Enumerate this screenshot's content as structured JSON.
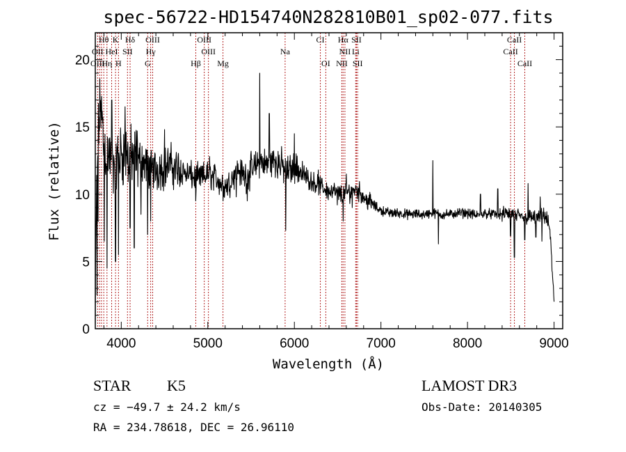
{
  "chart_data": {
    "type": "line",
    "title": "spec-56722-HD154740N282810B01_sp02-077.fits",
    "xlabel": "Wavelength (Å)",
    "ylabel": "Flux (relative)",
    "xlim": [
      3700,
      9100
    ],
    "ylim": [
      0,
      22
    ],
    "xticks": [
      4000,
      5000,
      6000,
      7000,
      8000,
      9000
    ],
    "yticks": [
      0,
      5,
      10,
      15,
      20
    ],
    "series": [
      {
        "name": "flux",
        "anchors": [
          [
            3700,
            0.5
          ],
          [
            3710,
            8
          ],
          [
            3730,
            14
          ],
          [
            3760,
            17
          ],
          [
            3800,
            13.5
          ],
          [
            3850,
            13
          ],
          [
            3900,
            12
          ],
          [
            3950,
            12.5
          ],
          [
            4000,
            13
          ],
          [
            4050,
            13
          ],
          [
            4100,
            12.5
          ],
          [
            4150,
            13
          ],
          [
            4200,
            12.5
          ],
          [
            4250,
            12.5
          ],
          [
            4300,
            12
          ],
          [
            4350,
            12
          ],
          [
            4400,
            11.8
          ],
          [
            4450,
            12
          ],
          [
            4500,
            12
          ],
          [
            4550,
            12.2
          ],
          [
            4600,
            12
          ],
          [
            4650,
            11.8
          ],
          [
            4700,
            11.8
          ],
          [
            4750,
            11.5
          ],
          [
            4800,
            11.4
          ],
          [
            4850,
            11.2
          ],
          [
            4900,
            11.2
          ],
          [
            4950,
            11.3
          ],
          [
            5000,
            11.5
          ],
          [
            5050,
            11.3
          ],
          [
            5100,
            11.2
          ],
          [
            5150,
            10.8
          ],
          [
            5200,
            10.6
          ],
          [
            5250,
            10.8
          ],
          [
            5300,
            11.5
          ],
          [
            5350,
            11.8
          ],
          [
            5400,
            11.5
          ],
          [
            5450,
            11.3
          ],
          [
            5500,
            11.8
          ],
          [
            5550,
            12.0
          ],
          [
            5600,
            12.5
          ],
          [
            5650,
            12.2
          ],
          [
            5700,
            12.3
          ],
          [
            5750,
            12.5
          ],
          [
            5800,
            12.4
          ],
          [
            5850,
            12.2
          ],
          [
            5900,
            11.6
          ],
          [
            5950,
            11.8
          ],
          [
            6000,
            12.0
          ],
          [
            6050,
            11.8
          ],
          [
            6100,
            11.5
          ],
          [
            6150,
            11.2
          ],
          [
            6200,
            11.0
          ],
          [
            6250,
            10.8
          ],
          [
            6300,
            10.6
          ],
          [
            6350,
            10.4
          ],
          [
            6400,
            10.2
          ],
          [
            6450,
            10.2
          ],
          [
            6500,
            10.1
          ],
          [
            6550,
            10.0
          ],
          [
            6600,
            10.1
          ],
          [
            6650,
            10.2
          ],
          [
            6700,
            10.4
          ],
          [
            6750,
            10.2
          ],
          [
            6800,
            9.8
          ],
          [
            6850,
            9.5
          ],
          [
            6900,
            9.3
          ],
          [
            6950,
            9.0
          ],
          [
            7000,
            8.8
          ],
          [
            7100,
            8.6
          ],
          [
            7200,
            8.6
          ],
          [
            7300,
            8.5
          ],
          [
            7400,
            8.5
          ],
          [
            7500,
            8.5
          ],
          [
            7600,
            8.6
          ],
          [
            7700,
            8.5
          ],
          [
            7800,
            8.5
          ],
          [
            7900,
            8.6
          ],
          [
            8000,
            8.6
          ],
          [
            8100,
            8.4
          ],
          [
            8200,
            8.6
          ],
          [
            8300,
            8.5
          ],
          [
            8400,
            8.5
          ],
          [
            8500,
            8.6
          ],
          [
            8600,
            8.3
          ],
          [
            8700,
            8.3
          ],
          [
            8800,
            8.2
          ],
          [
            8900,
            8.4
          ],
          [
            8950,
            7.5
          ],
          [
            9000,
            2.0
          ]
        ],
        "features": [
          [
            3720,
            2.5
          ],
          [
            3733,
            8.0
          ],
          [
            3768,
            16.5
          ],
          [
            3805,
            6.5
          ],
          [
            3835,
            4.5
          ],
          [
            3890,
            17.0
          ],
          [
            3934,
            5.0
          ],
          [
            3968,
            5.5
          ],
          [
            4045,
            16.5
          ],
          [
            4102,
            7.5
          ],
          [
            4150,
            6.0
          ],
          [
            4227,
            8.5
          ],
          [
            4305,
            7.0
          ],
          [
            4340,
            8.0
          ],
          [
            4500,
            14.8
          ],
          [
            4861,
            9.5
          ],
          [
            5020,
            12.8
          ],
          [
            5175,
            9.5
          ],
          [
            5270,
            10.5
          ],
          [
            5328,
            9.8
          ],
          [
            5455,
            9.5
          ],
          [
            5600,
            19.0
          ],
          [
            5710,
            16.0
          ],
          [
            5900,
            7.3
          ],
          [
            6000,
            14.5
          ],
          [
            6275,
            11.8
          ],
          [
            6495,
            9.2
          ],
          [
            6563,
            8.0
          ],
          [
            6600,
            11.5
          ],
          [
            6667,
            9.0
          ],
          [
            7600,
            12.5
          ],
          [
            7665,
            6.3
          ],
          [
            8150,
            10.0
          ],
          [
            8350,
            10.4
          ],
          [
            8498,
            6.9
          ],
          [
            8542,
            5.3
          ],
          [
            8662,
            6.6
          ],
          [
            8700,
            10.8
          ],
          [
            8790,
            6.8
          ],
          [
            8840,
            9.8
          ],
          [
            8860,
            6.5
          ],
          [
            8950,
            7.4
          ]
        ]
      }
    ],
    "lines": [
      {
        "label": "Hθ",
        "wave": 3798,
        "row": 0
      },
      {
        "label": "K",
        "wave": 3934,
        "row": 0
      },
      {
        "label": "Hδ",
        "wave": 4102,
        "row": 0
      },
      {
        "label": "OIII",
        "wave": 4363,
        "row": 0
      },
      {
        "label": "OIII",
        "wave": 4959,
        "row": 0
      },
      {
        "label": "CI",
        "wave": 6300,
        "row": 0
      },
      {
        "label": "Hα",
        "wave": 6563,
        "row": 0
      },
      {
        "label": "SII",
        "wave": 6717,
        "row": 0
      },
      {
        "label": "CaII",
        "wave": 8542,
        "row": 0
      },
      {
        "label": "OII",
        "wave": 3727,
        "row": 1
      },
      {
        "label": "HeI",
        "wave": 3889,
        "row": 1
      },
      {
        "label": "SII",
        "wave": 4072,
        "row": 1
      },
      {
        "label": "Hγ",
        "wave": 4340,
        "row": 1
      },
      {
        "label": "OIII",
        "wave": 5007,
        "row": 1
      },
      {
        "label": "Na",
        "wave": 5893,
        "row": 1
      },
      {
        "label": "NII",
        "wave": 6584,
        "row": 1
      },
      {
        "label": "Li",
        "wave": 6708,
        "row": 1
      },
      {
        "label": "CaII",
        "wave": 8498,
        "row": 1
      },
      {
        "label": "OIII",
        "wave": 3727,
        "row": 2
      },
      {
        "label": "Hη",
        "wave": 3835,
        "row": 2
      },
      {
        "label": "H",
        "wave": 3968,
        "row": 2
      },
      {
        "label": "G",
        "wave": 4305,
        "row": 2
      },
      {
        "label": "Hβ",
        "wave": 4861,
        "row": 2
      },
      {
        "label": "Mg",
        "wave": 5175,
        "row": 2
      },
      {
        "label": "OI",
        "wave": 6363,
        "row": 2
      },
      {
        "label": "NII",
        "wave": 6548,
        "row": 2
      },
      {
        "label": "SII",
        "wave": 6731,
        "row": 2
      },
      {
        "label": "CaII",
        "wave": 8662,
        "row": 2
      }
    ],
    "extra_lines": [
      3750,
      3771,
      4340,
      6717
    ]
  },
  "info": {
    "class_label": "STAR",
    "subclass": "K5",
    "survey": "LAMOST DR3",
    "cz": "cz = −49.7 ± 24.2 km/s",
    "obs_date": "Obs-Date: 20140305",
    "radec": "RA = 234.78618, DEC =  26.96110"
  },
  "colors": {
    "line_marker": "#b22222",
    "spectrum": "#000000"
  }
}
